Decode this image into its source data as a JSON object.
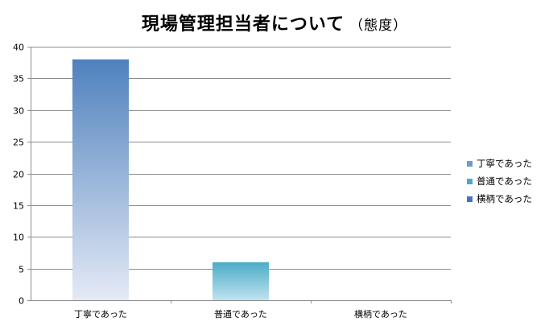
{
  "chart_data": {
    "type": "bar",
    "title": "現場管理担当者について",
    "subtitle": "（態度）",
    "categories": [
      "丁寧であった",
      "普通であった",
      "横柄であった"
    ],
    "values": [
      38,
      6,
      0
    ],
    "ylim": [
      0,
      40
    ],
    "yticks": [
      0,
      5,
      10,
      15,
      20,
      25,
      30,
      35,
      40
    ],
    "grid": true,
    "legend_position": "right",
    "bar_colors": [
      {
        "top": "#4f81bd",
        "bottom": "#e4eaf6"
      },
      {
        "top": "#4bacc6",
        "bottom": "#bfe3f1"
      },
      {
        "top": "#4f81bd",
        "bottom": "#e4eaf6"
      }
    ],
    "legend": [
      {
        "label": "丁寧であった",
        "color": "#6c9bd2"
      },
      {
        "label": "普通であった",
        "color": "#4bacc6"
      },
      {
        "label": "横柄であった",
        "color": "#4472c4"
      }
    ]
  }
}
